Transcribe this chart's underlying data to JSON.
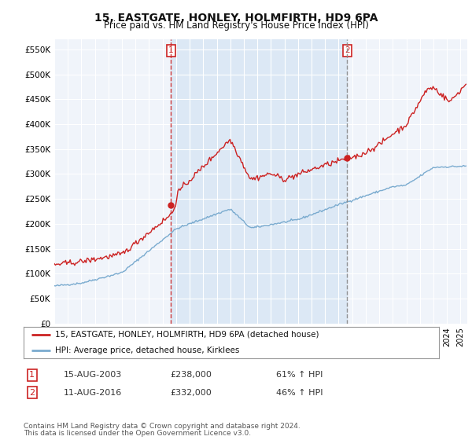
{
  "title": "15, EASTGATE, HONLEY, HOLMFIRTH, HD9 6PA",
  "subtitle": "Price paid vs. HM Land Registry's House Price Index (HPI)",
  "ylabel_ticks": [
    "£0",
    "£50K",
    "£100K",
    "£150K",
    "£200K",
    "£250K",
    "£300K",
    "£350K",
    "£400K",
    "£450K",
    "£500K",
    "£550K"
  ],
  "ytick_vals": [
    0,
    50000,
    100000,
    150000,
    200000,
    250000,
    300000,
    350000,
    400000,
    450000,
    500000,
    550000
  ],
  "ylim": [
    0,
    570000
  ],
  "xlim_start": 1995.0,
  "xlim_end": 2025.5,
  "property_color": "#cc2222",
  "hpi_color": "#7aabcf",
  "transaction1_date": 2003.62,
  "transaction1_price": 238000,
  "transaction2_date": 2016.62,
  "transaction2_price": 332000,
  "legend_property": "15, EASTGATE, HONLEY, HOLMFIRTH, HD9 6PA (detached house)",
  "legend_hpi": "HPI: Average price, detached house, Kirklees",
  "table_row1": [
    "1",
    "15-AUG-2003",
    "£238,000",
    "61% ↑ HPI"
  ],
  "table_row2": [
    "2",
    "11-AUG-2016",
    "£332,000",
    "46% ↑ HPI"
  ],
  "footnote1": "Contains HM Land Registry data © Crown copyright and database right 2024.",
  "footnote2": "This data is licensed under the Open Government Licence v3.0.",
  "background_color": "#ffffff",
  "plot_bg_color": "#f0f4fa",
  "shade_color": "#dce8f5"
}
